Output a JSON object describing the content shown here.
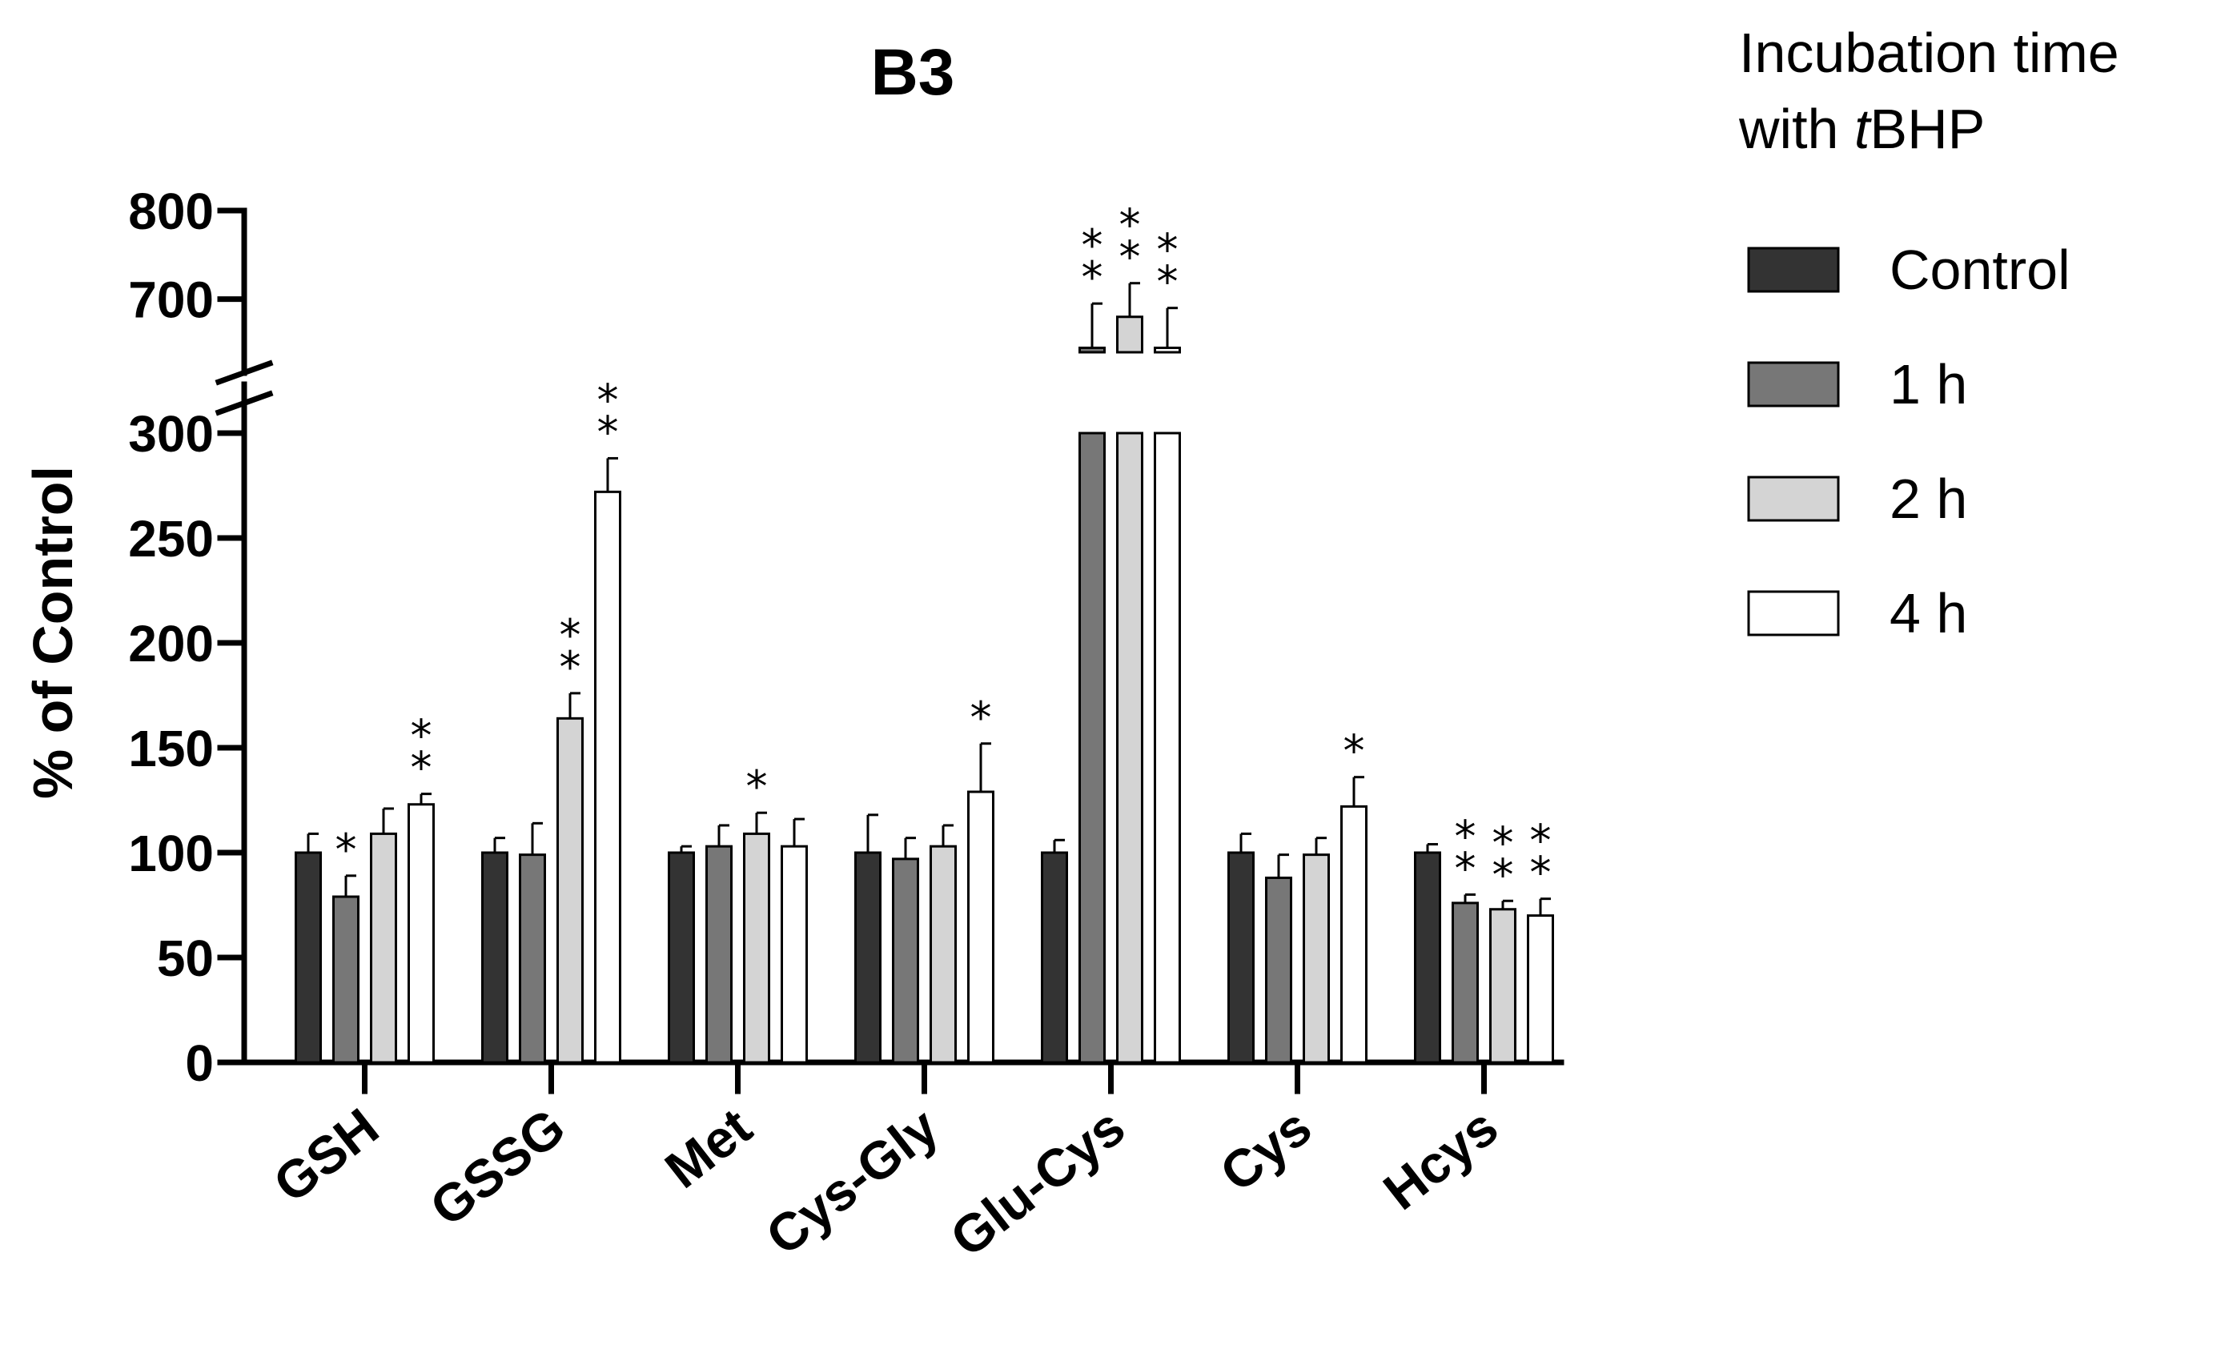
{
  "chart_data": {
    "type": "bar",
    "title": "B3",
    "xlabel": "",
    "ylabel": "% of Control",
    "ylim": [
      0,
      800
    ],
    "axis_break": {
      "lower_max": 300,
      "upper_min": 640
    },
    "yticks_lower": [
      0,
      50,
      100,
      150,
      200,
      250,
      300
    ],
    "yticks_upper": [
      700,
      800
    ],
    "categories": [
      "GSH",
      "GSSG",
      "Met",
      "Cys-Gly",
      "Glu-Cys",
      "Cys",
      "Hcys"
    ],
    "legend_title": [
      "Incubation time",
      "with ",
      "t",
      "BHP"
    ],
    "colors": [
      "#333333",
      "#777777",
      "#d4d4d4",
      "#ffffff"
    ],
    "series": [
      {
        "name": "Control",
        "values": [
          100,
          100,
          100,
          100,
          100,
          100,
          100
        ],
        "errors": [
          9,
          7,
          3,
          18,
          6,
          9,
          4
        ],
        "significance": [
          "",
          "",
          "",
          "",
          "",
          "",
          ""
        ]
      },
      {
        "name": "1 h",
        "values": [
          79,
          99,
          103,
          97,
          645,
          88,
          76
        ],
        "errors": [
          10,
          15,
          10,
          10,
          50,
          11,
          4
        ],
        "significance": [
          "*",
          "",
          "",
          "",
          "**",
          "",
          "**"
        ]
      },
      {
        "name": "2 h",
        "values": [
          109,
          164,
          109,
          103,
          680,
          99,
          73
        ],
        "errors": [
          12,
          12,
          10,
          10,
          38,
          8,
          4
        ],
        "significance": [
          "",
          "**",
          "*",
          "",
          "**",
          "",
          "**"
        ]
      },
      {
        "name": "4 h",
        "values": [
          123,
          272,
          103,
          129,
          645,
          122,
          70
        ],
        "errors": [
          5,
          16,
          13,
          23,
          45,
          14,
          8
        ],
        "significance": [
          "**",
          "**",
          "",
          "*",
          "**",
          "*",
          "**"
        ]
      }
    ]
  }
}
